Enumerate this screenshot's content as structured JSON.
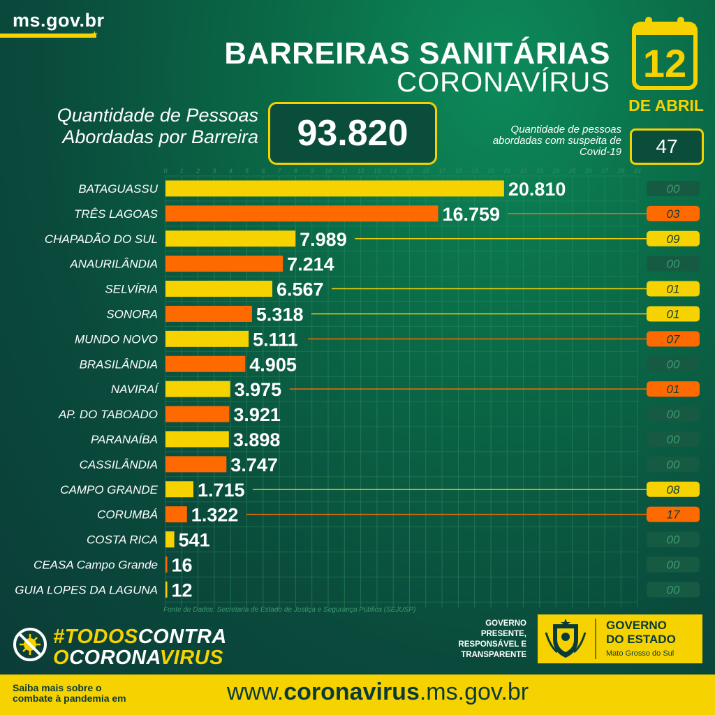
{
  "header": {
    "site": "ms.gov.br",
    "title": "BARREIRAS SANITÁRIAS",
    "subtitle": "CORONAVÍRUS",
    "day": "12",
    "month": "DE ABRIL"
  },
  "summary": {
    "label": "Quantidade de Pessoas Abordadas por Barreira",
    "total": "93.820",
    "suspect_label": "Quantidade de pessoas abordadas com suspeita de Covid-19",
    "suspect_total": "47"
  },
  "colors": {
    "yellow": "#f6d200",
    "orange": "#ff6a00",
    "dark_green": "#165a43",
    "bg": "#0b3b37"
  },
  "chart_data": {
    "type": "bar",
    "orientation": "horizontal",
    "x_ticks": [
      "0",
      "1",
      "2",
      "3",
      "4",
      "5",
      "6",
      "7",
      "8",
      "9",
      "10",
      "11",
      "12",
      "13",
      "14",
      "15",
      "16",
      "17",
      "18",
      "19",
      "20",
      "21",
      "22",
      "23",
      "24",
      "25",
      "26",
      "27",
      "28",
      "29"
    ],
    "x_unit": 1000,
    "xlim": [
      0,
      29
    ],
    "grid": true,
    "categories": [
      "BATAGUASSU",
      "TRÊS LAGOAS",
      "CHAPADÃO DO SUL",
      "ANAURILÂNDIA",
      "SELVÍRIA",
      "SONORA",
      "MUNDO NOVO",
      "BRASILÂNDIA",
      "NAVIRAÍ",
      "AP. DO TABOADO",
      "PARANAÍBA",
      "CASSILÂNDIA",
      "CAMPO GRANDE",
      "CORUMBÁ",
      "COSTA RICA",
      "CEASA Campo Grande",
      "GUIA LOPES DA LAGUNA"
    ],
    "values": [
      20810,
      16759,
      7989,
      7214,
      6567,
      5318,
      5111,
      4905,
      3975,
      3921,
      3898,
      3747,
      1715,
      1322,
      541,
      16,
      12
    ],
    "value_labels": [
      "20.810",
      "16.759",
      "7.989",
      "7.214",
      "6.567",
      "5.318",
      "5.111",
      "4.905",
      "3.975",
      "3.921",
      "3.898",
      "3.747",
      "1.715",
      "1.322",
      "541",
      "16",
      "12"
    ],
    "suspect_values": [
      0,
      3,
      9,
      0,
      1,
      1,
      7,
      0,
      1,
      0,
      0,
      0,
      8,
      17,
      0,
      0,
      0
    ],
    "suspect_labels": [
      "00",
      "03",
      "09",
      "00",
      "01",
      "01",
      "07",
      "00",
      "01",
      "00",
      "00",
      "00",
      "08",
      "17",
      "00",
      "00",
      "00"
    ]
  },
  "source": "Fonte de Dados: Secretaria de Estado de Justiça e Segurança Pública (SEJUSP)",
  "campaign": {
    "line1_a": "#TODOS",
    "line1_b": "CONTRA",
    "line2_a": "O",
    "line2_b": "CORONA",
    "line2_c": "VIRUS"
  },
  "government": {
    "slogan_1": "GOVERNO",
    "slogan_2": "PRESENTE,",
    "slogan_3": "RESPONSÁVEL E",
    "slogan_4": "TRANSPARENTE",
    "name_1": "GOVERNO",
    "name_2": "DO ESTADO",
    "state": "Mato Grosso do Sul"
  },
  "footer": {
    "text_1": "Saiba mais sobre o",
    "text_2": "combate à pandemia em",
    "url_prefix": "www.",
    "url_bold": "coronavirus",
    "url_suffix": ".ms.gov.br"
  }
}
